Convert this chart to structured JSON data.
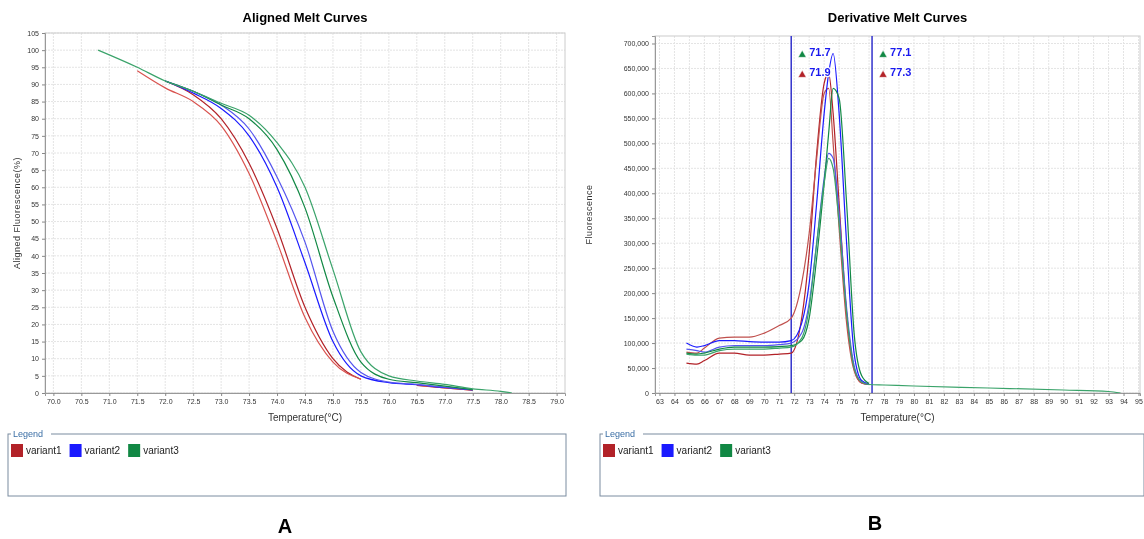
{
  "chart_data": [
    {
      "type": "line",
      "title": "Aligned Melt Curves",
      "xlabel": "Temperature(°C)",
      "ylabel": "Aligned Fluorescence(%)",
      "legend_title": "Legend",
      "legend": "bottom",
      "grid": true,
      "marker": "none",
      "line_style": "solid",
      "x": [
        70.8,
        71.5,
        72,
        72.5,
        73,
        73.5,
        74,
        74.5,
        75,
        75.5,
        76,
        76.5,
        77,
        77.5,
        78,
        78.2
      ],
      "xlim": [
        69.85,
        79.15
      ],
      "ylim": [
        0,
        105
      ],
      "xticks": [
        {
          "value": 70,
          "label": "70.0"
        },
        {
          "value": 70.5,
          "label": "70.5"
        },
        {
          "value": 71,
          "label": "71.0"
        },
        {
          "value": 71.5,
          "label": "71.5"
        },
        {
          "value": 72,
          "label": "72.0"
        },
        {
          "value": 72.5,
          "label": "72.5"
        },
        {
          "value": 73,
          "label": "73.0"
        },
        {
          "value": 73.5,
          "label": "73.5"
        },
        {
          "value": 74,
          "label": "74.0"
        },
        {
          "value": 74.5,
          "label": "74.5"
        },
        {
          "value": 75,
          "label": "75.0"
        },
        {
          "value": 75.5,
          "label": "75.5"
        },
        {
          "value": 76,
          "label": "76.0"
        },
        {
          "value": 76.5,
          "label": "76.5"
        },
        {
          "value": 77,
          "label": "77.0"
        },
        {
          "value": 77.5,
          "label": "77.5"
        },
        {
          "value": 78,
          "label": "78.0"
        },
        {
          "value": 78.5,
          "label": "78.5"
        },
        {
          "value": 79,
          "label": "79.0"
        }
      ],
      "yticks": [
        0,
        5,
        10,
        15,
        20,
        25,
        30,
        35,
        40,
        45,
        50,
        55,
        60,
        65,
        70,
        75,
        80,
        85,
        90,
        95,
        100,
        105
      ],
      "series": [
        {
          "name": "variant1",
          "color": "#b22228",
          "values": [
            null,
            null,
            91,
            87,
            80,
            67,
            48,
            25,
            10,
            4,
            null,
            2.2,
            1.5,
            0.8,
            null,
            null
          ]
        },
        {
          "color": "#d9534f",
          "values": [
            null,
            94,
            89,
            85,
            78,
            64,
            44,
            22,
            9,
            4,
            null,
            2.3,
            1.5,
            0.8,
            null,
            null
          ]
        },
        {
          "name": "variant2",
          "color": "#1a1aff",
          "values": [
            null,
            null,
            91,
            87.5,
            83,
            75,
            60,
            38,
            15,
            5,
            3,
            2.4,
            1.6,
            0.9,
            null,
            null
          ]
        },
        {
          "color": "#5555ee",
          "values": [
            null,
            null,
            91,
            88,
            84,
            77,
            63,
            44,
            18,
            6,
            3.2,
            2.5,
            1.7,
            1,
            null,
            null
          ]
        },
        {
          "name": "variant3",
          "color": "#118844",
          "values": [
            null,
            null,
            91,
            88,
            84,
            80,
            71,
            54,
            28,
            9,
            4,
            3,
            2,
            1,
            null,
            null
          ]
        },
        {
          "color": "#3aa36a",
          "values": [
            100,
            95,
            91,
            88,
            84.5,
            81,
            73,
            60,
            36,
            12,
            5,
            3.5,
            2.5,
            1.2,
            0.5,
            0
          ]
        }
      ],
      "annotations": [
        "A"
      ]
    },
    {
      "type": "line",
      "title": "Derivative Melt Curves",
      "xlabel": "Temperature(°C)",
      "ylabel": "Fluorescence",
      "legend_title": "Legend",
      "legend": "bottom",
      "grid": true,
      "marker": "none",
      "line_style": "solid",
      "x": [
        64.8,
        65.5,
        66,
        67,
        68,
        69,
        70,
        71,
        71.8,
        72.5,
        73,
        73.5,
        74,
        74.3,
        74.6,
        75,
        75.5,
        76,
        76.5,
        77,
        78,
        80,
        85,
        90,
        93,
        93.8
      ],
      "xlim": [
        62.7,
        95.1
      ],
      "ylim": [
        0,
        715000
      ],
      "xticks": [
        63,
        64,
        65,
        66,
        67,
        68,
        69,
        70,
        71,
        72,
        73,
        74,
        75,
        76,
        77,
        78,
        79,
        80,
        81,
        82,
        83,
        84,
        85,
        86,
        87,
        88,
        89,
        90,
        91,
        92,
        93,
        94,
        95
      ],
      "yticks": [
        0,
        {
          "value": 50000,
          "label": "50,000"
        },
        {
          "value": 100000,
          "label": "100,000"
        },
        {
          "value": 150000,
          "label": "150,000"
        },
        {
          "value": 200000,
          "label": "200,000"
        },
        {
          "value": 250000,
          "label": "250,000"
        },
        {
          "value": 300000,
          "label": "300,000"
        },
        {
          "value": 350000,
          "label": "350,000"
        },
        {
          "value": 400000,
          "label": "400,000"
        },
        {
          "value": 450000,
          "label": "450,000"
        },
        {
          "value": 500000,
          "label": "500,000"
        },
        {
          "value": 550000,
          "label": "550,000"
        },
        {
          "value": 600000,
          "label": "600,000"
        },
        {
          "value": 650000,
          "label": "650,000"
        },
        {
          "value": 700000,
          "label": "700,000"
        }
      ],
      "series": [
        {
          "name": "variant1",
          "color": "#b22228",
          "values": [
            60000,
            58000,
            65000,
            80000,
            80000,
            76000,
            76000,
            78000,
            80000,
            150000,
            280000,
            480000,
            620000,
            640000,
            560000,
            380000,
            160000,
            50000,
            20000,
            17000,
            null,
            null,
            null,
            null,
            null,
            null
          ]
        },
        {
          "color": "#c0504d",
          "values": [
            82000,
            80000,
            90000,
            110000,
            112000,
            112000,
            120000,
            135000,
            150000,
            220000,
            320000,
            470000,
            600000,
            610000,
            500000,
            330000,
            140000,
            45000,
            20000,
            17000,
            null,
            null,
            null,
            null,
            null,
            null
          ]
        },
        {
          "name": "variant2",
          "color": "#1a1aff",
          "values": [
            100000,
            92000,
            95000,
            105000,
            105000,
            103000,
            102000,
            102000,
            105000,
            140000,
            220000,
            380000,
            560000,
            640000,
            680000,
            560000,
            300000,
            80000,
            25000,
            18000,
            null,
            null,
            null,
            null,
            null,
            null
          ]
        },
        {
          "color": "#5555ee",
          "values": [
            88000,
            85000,
            82000,
            92000,
            95000,
            95000,
            95000,
            97000,
            100000,
            120000,
            180000,
            300000,
            430000,
            480000,
            470000,
            360000,
            170000,
            55000,
            22000,
            17000,
            null,
            null,
            null,
            null,
            null,
            null
          ]
        },
        {
          "name": "variant3",
          "color": "#118844",
          "values": [
            80000,
            78000,
            80000,
            88000,
            92000,
            92000,
            92000,
            93000,
            95000,
            105000,
            150000,
            270000,
            420000,
            520000,
            610000,
            590000,
            380000,
            120000,
            35000,
            19000,
            null,
            null,
            null,
            null,
            null,
            null
          ]
        },
        {
          "color": "#3aa36a",
          "values": [
            78000,
            76000,
            76000,
            85000,
            88000,
            88000,
            88000,
            90000,
            92000,
            110000,
            170000,
            300000,
            420000,
            470000,
            450000,
            340000,
            160000,
            50000,
            22000,
            17000,
            16000,
            14000,
            10000,
            6000,
            3000,
            0
          ]
        }
      ],
      "ref_lines": [
        {
          "axis": "x",
          "value": 71.8,
          "color": "#3333cc"
        },
        {
          "axis": "x",
          "value": 77.2,
          "color": "#3333cc"
        }
      ],
      "annotations": [
        "B",
        "71.7",
        "71.9",
        "77.1",
        "77.3"
      ]
    }
  ]
}
